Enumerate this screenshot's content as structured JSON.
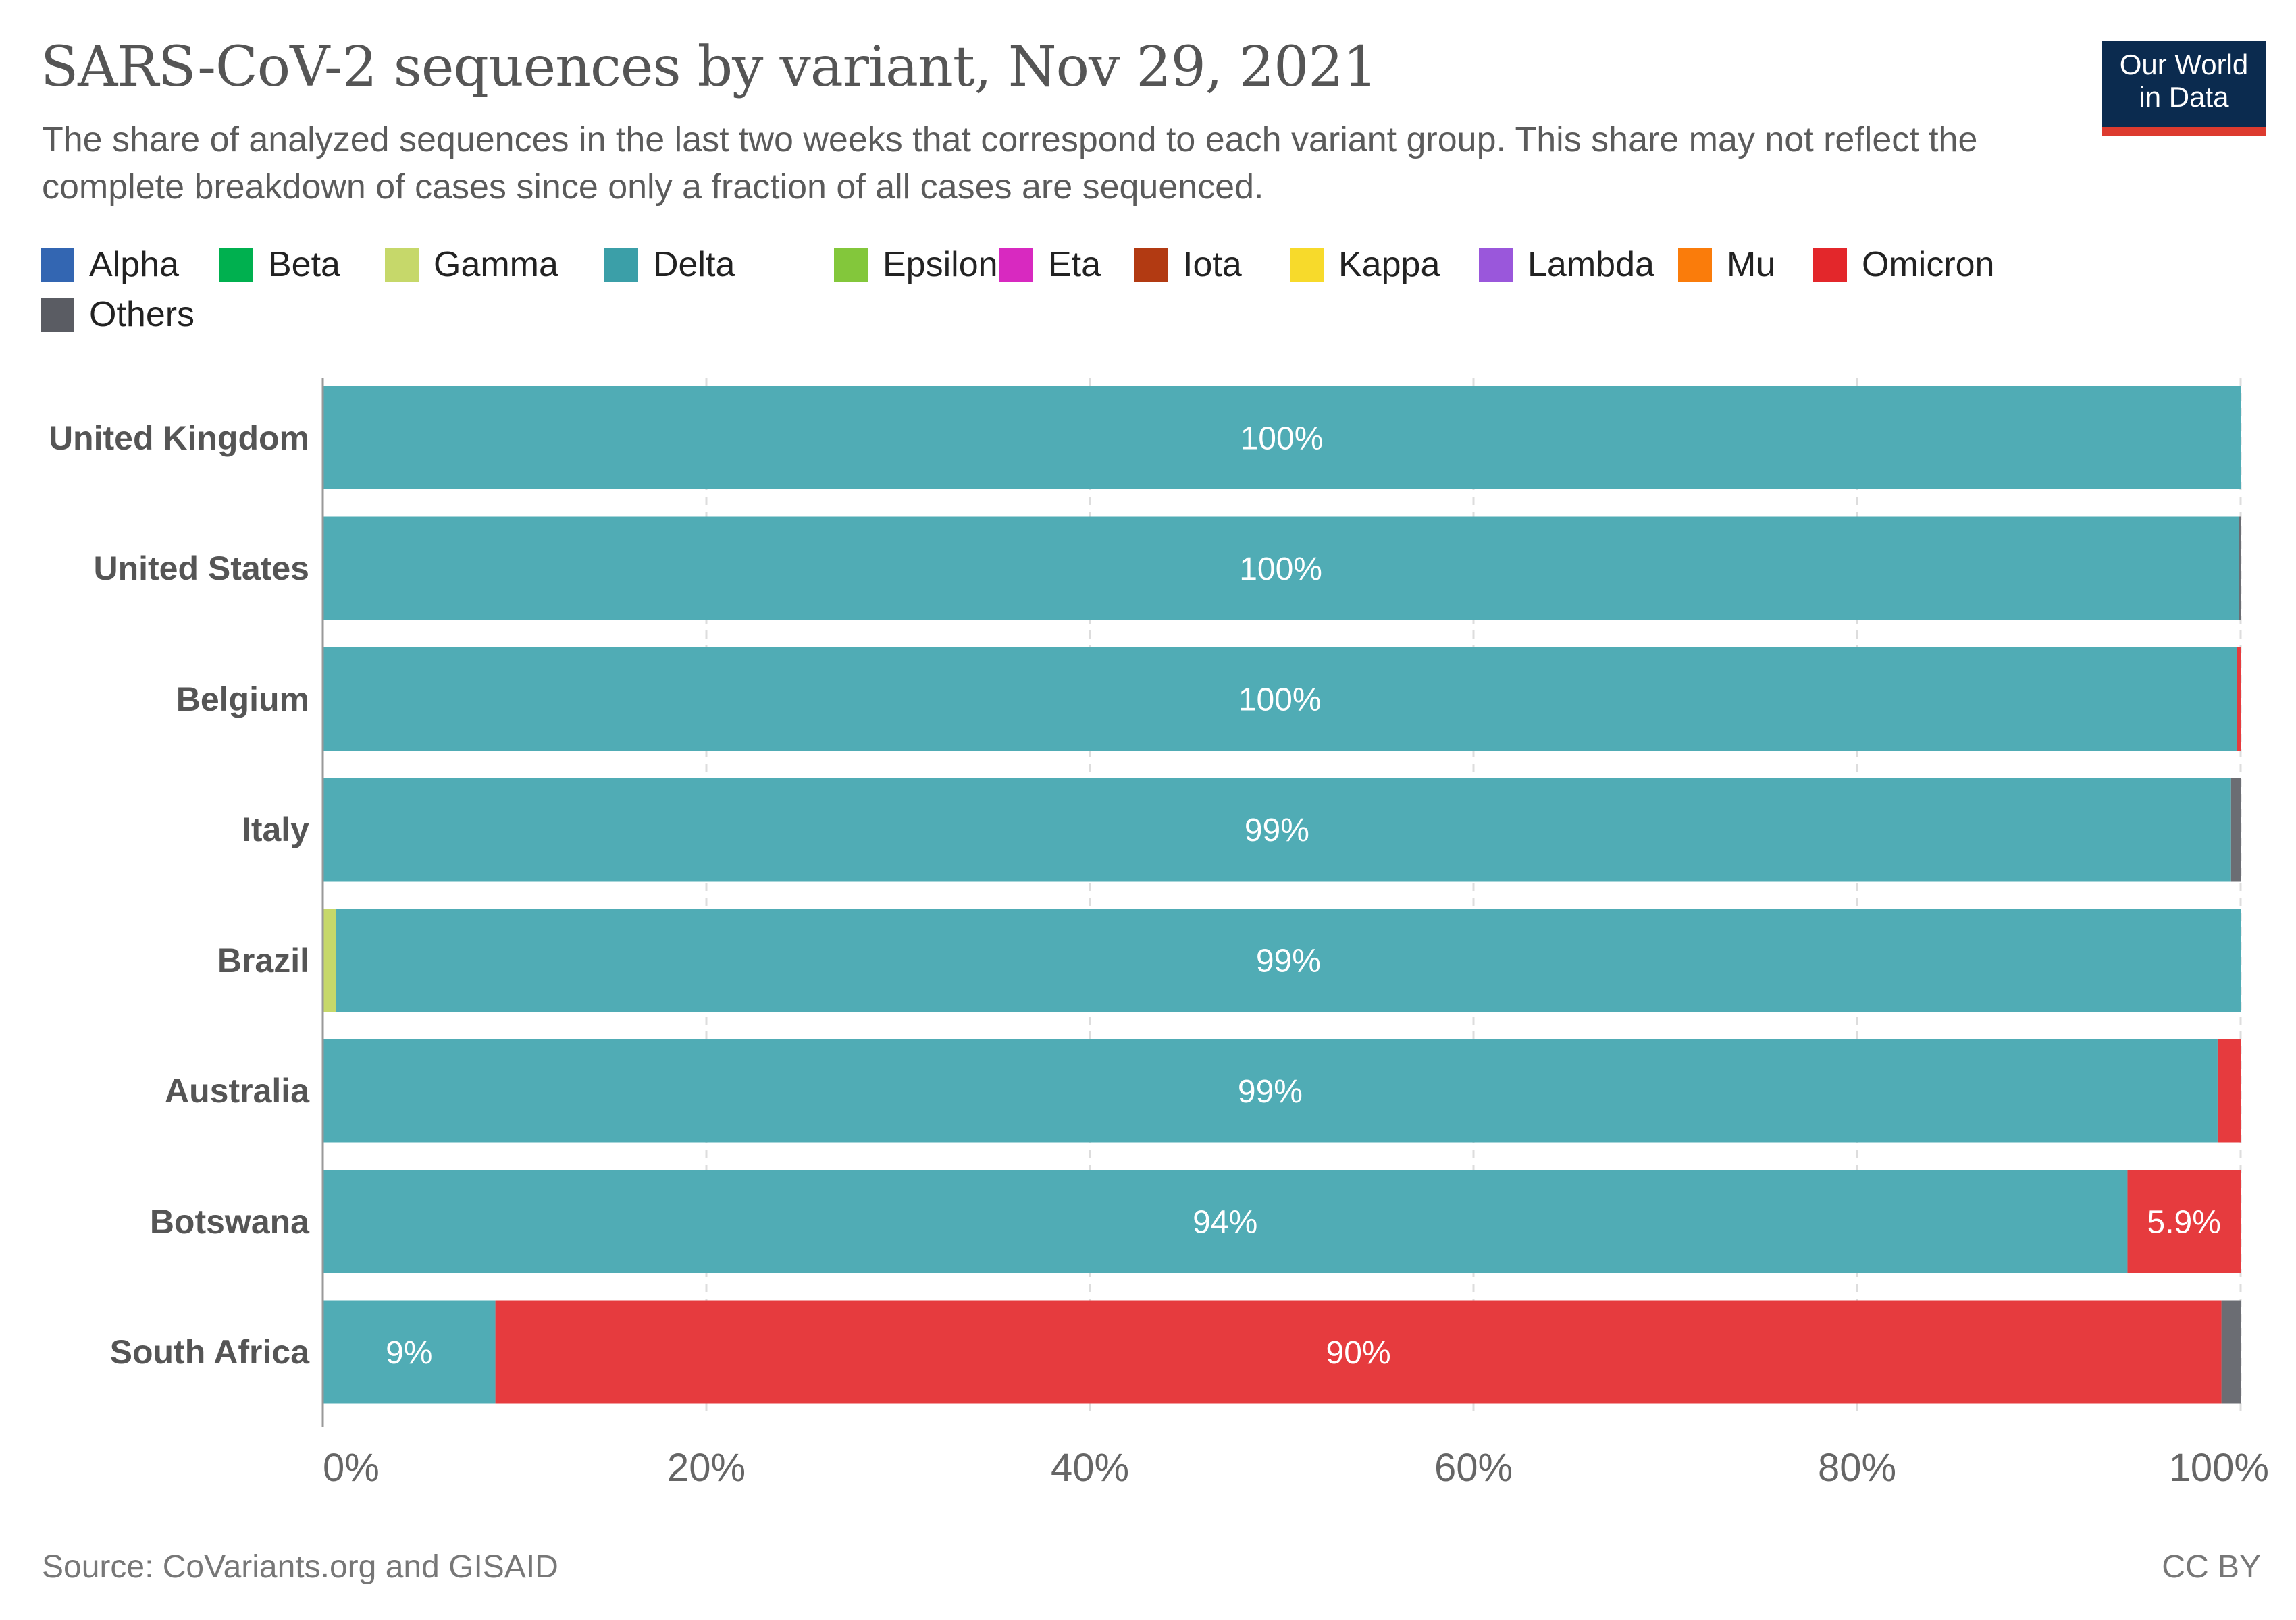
{
  "title": "SARS-CoV-2 sequences by variant, Nov 29, 2021",
  "subtitle": "The share of analyzed sequences in the last two weeks that correspond to each variant group. This share may not reflect the complete breakdown of cases since only a fraction of all cases are sequenced.",
  "logo": {
    "line1": "Our World",
    "line2": "in Data"
  },
  "footer": {
    "source": "Source: CoVariants.org and GISAID",
    "license": "CC BY"
  },
  "legend": [
    {
      "name": "Alpha",
      "color": "#3366b2"
    },
    {
      "name": "Beta",
      "color": "#00b04f"
    },
    {
      "name": "Gamma",
      "color": "#c6d86a"
    },
    {
      "name": "Delta",
      "color": "#3b9fa8"
    },
    {
      "name": "Epsilon",
      "color": "#83c73b"
    },
    {
      "name": "Eta",
      "color": "#d829c0"
    },
    {
      "name": "Iota",
      "color": "#b23a12"
    },
    {
      "name": "Kappa",
      "color": "#f7da2b"
    },
    {
      "name": "Lambda",
      "color": "#9a57db"
    },
    {
      "name": "Mu",
      "color": "#fa7c0b"
    },
    {
      "name": "Omicron",
      "color": "#e3272b"
    },
    {
      "name": "Others",
      "color": "#5a5c63"
    }
  ],
  "chart_data": {
    "type": "bar",
    "orientation": "horizontal",
    "stacked": true,
    "categories": [
      "United Kingdom",
      "United States",
      "Belgium",
      "Italy",
      "Brazil",
      "Australia",
      "Botswana",
      "South Africa"
    ],
    "xlim": [
      0,
      100
    ],
    "x_ticks": [
      "0%",
      "20%",
      "40%",
      "60%",
      "80%",
      "100%"
    ],
    "grid": "vertical dashed",
    "series": [
      {
        "name": "Gamma",
        "color": "#c6d86a",
        "values": [
          0,
          0,
          0,
          0,
          0.7,
          0,
          0,
          0
        ],
        "labels": [
          "",
          "",
          "",
          "",
          "",
          "",
          "",
          ""
        ]
      },
      {
        "name": "Delta",
        "color": "#50acb5",
        "values": [
          100,
          99.9,
          99.8,
          99.5,
          99.3,
          98.8,
          94.1,
          9.0
        ],
        "labels": [
          "100%",
          "100%",
          "100%",
          "99%",
          "99%",
          "99%",
          "94%",
          "9%"
        ]
      },
      {
        "name": "Omicron",
        "color": "#e63b3e",
        "values": [
          0,
          0,
          0.2,
          0,
          0,
          1.2,
          5.9,
          90.0
        ],
        "labels": [
          "",
          "",
          "",
          "",
          "",
          "",
          "5.9%",
          "90%"
        ]
      },
      {
        "name": "Others",
        "color": "#6b6d73",
        "values": [
          0,
          0.1,
          0,
          0.5,
          0,
          0,
          0,
          1.0
        ],
        "labels": [
          "",
          "",
          "",
          "",
          "",
          "",
          "",
          ""
        ]
      }
    ]
  }
}
